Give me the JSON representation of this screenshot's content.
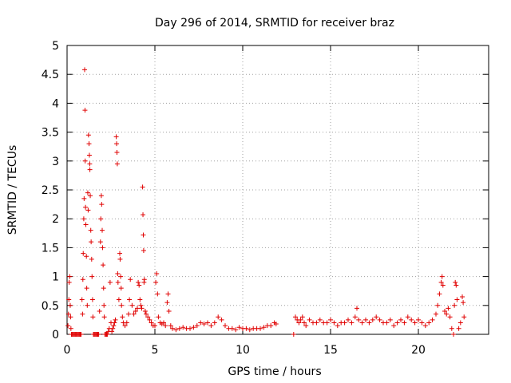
{
  "chart_data": {
    "type": "scatter",
    "title": "Day 296 of 2014, SRMTID for receiver braz",
    "xlabel": "GPS time / hours",
    "ylabel": "SRMTID / TECUs",
    "xlim": [
      0,
      24
    ],
    "ylim": [
      0,
      5
    ],
    "x_ticks": [
      0,
      5,
      10,
      15,
      20
    ],
    "x_tick_labels": [
      "0",
      "5",
      "10",
      "15",
      "20"
    ],
    "y_ticks": [
      0,
      0.5,
      1,
      1.5,
      2,
      2.5,
      3,
      3.5,
      4,
      4.5,
      5
    ],
    "y_tick_labels": [
      "0",
      "0.5",
      "1",
      "1.5",
      "2",
      "2.5",
      "3",
      "3.5",
      "4",
      "4.5",
      "5"
    ],
    "grid": true,
    "marker": "+",
    "colors": {
      "points": "#e00000",
      "grid": "#a0a0a0",
      "axis": "#000000"
    },
    "series": [
      {
        "name": "SRMTID",
        "points": [
          [
            0.05,
            0.15
          ],
          [
            0.08,
            0.35
          ],
          [
            0.1,
            0.6
          ],
          [
            0.12,
            0.9
          ],
          [
            0.15,
            1.0
          ],
          [
            0.18,
            0.5
          ],
          [
            0.2,
            0.3
          ],
          [
            0.22,
            0.1
          ],
          [
            0.25,
            0.0
          ],
          [
            0.3,
            0.0
          ],
          [
            0.35,
            0.0
          ],
          [
            0.4,
            0.0
          ],
          [
            0.45,
            0.0
          ],
          [
            0.5,
            0.0
          ],
          [
            0.55,
            0.0
          ],
          [
            0.6,
            0.0
          ],
          [
            0.65,
            0.0
          ],
          [
            0.7,
            0.0
          ],
          [
            0.75,
            0.0
          ],
          [
            0.8,
            0.0
          ],
          [
            0.85,
            0.6
          ],
          [
            0.88,
            0.35
          ],
          [
            0.9,
            0.95
          ],
          [
            0.92,
            1.4
          ],
          [
            0.95,
            2.0
          ],
          [
            0.97,
            2.35
          ],
          [
            1.0,
            4.58
          ],
          [
            1.02,
            3.88
          ],
          [
            1.03,
            3.0
          ],
          [
            1.05,
            2.2
          ],
          [
            1.07,
            1.9
          ],
          [
            1.1,
            1.35
          ],
          [
            1.12,
            0.8
          ],
          [
            1.15,
            0.5
          ],
          [
            1.18,
            2.45
          ],
          [
            1.2,
            2.15
          ],
          [
            1.22,
            3.45
          ],
          [
            1.25,
            3.3
          ],
          [
            1.27,
            3.1
          ],
          [
            1.29,
            2.95
          ],
          [
            1.3,
            2.85
          ],
          [
            1.32,
            2.4
          ],
          [
            1.35,
            1.8
          ],
          [
            1.37,
            1.6
          ],
          [
            1.4,
            1.3
          ],
          [
            1.42,
            1.0
          ],
          [
            1.45,
            0.6
          ],
          [
            1.47,
            0.3
          ],
          [
            1.5,
            0.0
          ],
          [
            1.55,
            0.0
          ],
          [
            1.6,
            0.0
          ],
          [
            1.65,
            0.0
          ],
          [
            1.7,
            0.0
          ],
          [
            1.75,
            0.0
          ],
          [
            1.8,
            0.0
          ],
          [
            1.85,
            0.4
          ],
          [
            1.9,
            1.6
          ],
          [
            1.92,
            2.0
          ],
          [
            1.95,
            2.4
          ],
          [
            1.97,
            2.25
          ],
          [
            2.0,
            1.8
          ],
          [
            2.02,
            1.5
          ],
          [
            2.05,
            1.2
          ],
          [
            2.08,
            0.8
          ],
          [
            2.1,
            0.5
          ],
          [
            2.12,
            0.3
          ],
          [
            2.15,
            0.0
          ],
          [
            2.2,
            0.0
          ],
          [
            2.25,
            0.0
          ],
          [
            2.3,
            0.0
          ],
          [
            2.35,
            0.05
          ],
          [
            2.4,
            0.1
          ],
          [
            2.45,
            0.9
          ],
          [
            2.5,
            0.2
          ],
          [
            2.55,
            0.05
          ],
          [
            2.6,
            0.1
          ],
          [
            2.65,
            0.15
          ],
          [
            2.7,
            0.2
          ],
          [
            2.75,
            0.25
          ],
          [
            2.8,
            3.42
          ],
          [
            2.82,
            3.3
          ],
          [
            2.84,
            3.15
          ],
          [
            2.86,
            2.95
          ],
          [
            2.88,
            1.05
          ],
          [
            2.9,
            0.9
          ],
          [
            2.95,
            0.6
          ],
          [
            3.0,
            1.4
          ],
          [
            3.02,
            1.3
          ],
          [
            3.05,
            1.0
          ],
          [
            3.08,
            0.8
          ],
          [
            3.1,
            0.5
          ],
          [
            3.15,
            0.3
          ],
          [
            3.2,
            0.2
          ],
          [
            3.3,
            0.15
          ],
          [
            3.4,
            0.2
          ],
          [
            3.5,
            0.35
          ],
          [
            3.55,
            0.6
          ],
          [
            3.6,
            0.95
          ],
          [
            3.7,
            0.5
          ],
          [
            3.8,
            0.35
          ],
          [
            3.9,
            0.4
          ],
          [
            4.0,
            0.45
          ],
          [
            4.05,
            0.9
          ],
          [
            4.1,
            0.85
          ],
          [
            4.15,
            0.6
          ],
          [
            4.2,
            0.5
          ],
          [
            4.25,
            0.45
          ],
          [
            4.3,
            2.55
          ],
          [
            4.32,
            2.07
          ],
          [
            4.34,
            1.72
          ],
          [
            4.36,
            1.45
          ],
          [
            4.38,
            0.9
          ],
          [
            4.4,
            0.95
          ],
          [
            4.45,
            0.4
          ],
          [
            4.5,
            0.35
          ],
          [
            4.6,
            0.3
          ],
          [
            4.7,
            0.25
          ],
          [
            4.8,
            0.2
          ],
          [
            4.9,
            0.15
          ],
          [
            5.0,
            0.15
          ],
          [
            5.05,
            0.9
          ],
          [
            5.1,
            1.05
          ],
          [
            5.15,
            0.7
          ],
          [
            5.2,
            0.3
          ],
          [
            5.3,
            0.2
          ],
          [
            5.4,
            0.18
          ],
          [
            5.5,
            0.2
          ],
          [
            5.6,
            0.15
          ],
          [
            5.7,
            0.55
          ],
          [
            5.75,
            0.7
          ],
          [
            5.8,
            0.4
          ],
          [
            5.9,
            0.15
          ],
          [
            6.0,
            0.1
          ],
          [
            6.2,
            0.08
          ],
          [
            6.4,
            0.1
          ],
          [
            6.6,
            0.12
          ],
          [
            6.8,
            0.1
          ],
          [
            7.0,
            0.1
          ],
          [
            7.2,
            0.12
          ],
          [
            7.4,
            0.15
          ],
          [
            7.6,
            0.2
          ],
          [
            7.8,
            0.18
          ],
          [
            8.0,
            0.2
          ],
          [
            8.2,
            0.15
          ],
          [
            8.4,
            0.2
          ],
          [
            8.6,
            0.3
          ],
          [
            8.8,
            0.25
          ],
          [
            9.0,
            0.15
          ],
          [
            9.2,
            0.1
          ],
          [
            9.4,
            0.1
          ],
          [
            9.6,
            0.08
          ],
          [
            9.8,
            0.12
          ],
          [
            10.0,
            0.1
          ],
          [
            10.2,
            0.1
          ],
          [
            10.4,
            0.08
          ],
          [
            10.6,
            0.1
          ],
          [
            10.8,
            0.1
          ],
          [
            11.0,
            0.1
          ],
          [
            11.2,
            0.12
          ],
          [
            11.4,
            0.15
          ],
          [
            11.6,
            0.15
          ],
          [
            11.8,
            0.2
          ],
          [
            11.9,
            0.18
          ],
          [
            12.9,
            0.0
          ],
          [
            13.0,
            0.3
          ],
          [
            13.1,
            0.25
          ],
          [
            13.2,
            0.2
          ],
          [
            13.3,
            0.25
          ],
          [
            13.4,
            0.3
          ],
          [
            13.5,
            0.2
          ],
          [
            13.6,
            0.15
          ],
          [
            13.8,
            0.25
          ],
          [
            14.0,
            0.2
          ],
          [
            14.2,
            0.2
          ],
          [
            14.4,
            0.25
          ],
          [
            14.6,
            0.2
          ],
          [
            14.8,
            0.2
          ],
          [
            15.0,
            0.25
          ],
          [
            15.2,
            0.2
          ],
          [
            15.4,
            0.15
          ],
          [
            15.6,
            0.2
          ],
          [
            15.8,
            0.2
          ],
          [
            16.0,
            0.25
          ],
          [
            16.2,
            0.2
          ],
          [
            16.4,
            0.3
          ],
          [
            16.5,
            0.45
          ],
          [
            16.6,
            0.25
          ],
          [
            16.8,
            0.2
          ],
          [
            17.0,
            0.25
          ],
          [
            17.2,
            0.2
          ],
          [
            17.4,
            0.25
          ],
          [
            17.6,
            0.3
          ],
          [
            17.8,
            0.25
          ],
          [
            18.0,
            0.2
          ],
          [
            18.2,
            0.2
          ],
          [
            18.4,
            0.25
          ],
          [
            18.6,
            0.15
          ],
          [
            18.8,
            0.2
          ],
          [
            19.0,
            0.25
          ],
          [
            19.2,
            0.2
          ],
          [
            19.4,
            0.3
          ],
          [
            19.6,
            0.25
          ],
          [
            19.8,
            0.2
          ],
          [
            20.0,
            0.25
          ],
          [
            20.2,
            0.2
          ],
          [
            20.4,
            0.15
          ],
          [
            20.6,
            0.2
          ],
          [
            20.8,
            0.25
          ],
          [
            21.0,
            0.35
          ],
          [
            21.1,
            0.5
          ],
          [
            21.2,
            0.7
          ],
          [
            21.3,
            0.9
          ],
          [
            21.35,
            1.0
          ],
          [
            21.4,
            0.85
          ],
          [
            21.5,
            0.4
          ],
          [
            21.6,
            0.35
          ],
          [
            21.7,
            0.45
          ],
          [
            21.8,
            0.3
          ],
          [
            21.9,
            0.1
          ],
          [
            22.0,
            0.0
          ],
          [
            22.05,
            0.5
          ],
          [
            22.1,
            0.9
          ],
          [
            22.15,
            0.85
          ],
          [
            22.2,
            0.6
          ],
          [
            22.3,
            0.1
          ],
          [
            22.4,
            0.2
          ],
          [
            22.5,
            0.65
          ],
          [
            22.55,
            0.55
          ],
          [
            22.6,
            0.3
          ]
        ]
      }
    ]
  }
}
